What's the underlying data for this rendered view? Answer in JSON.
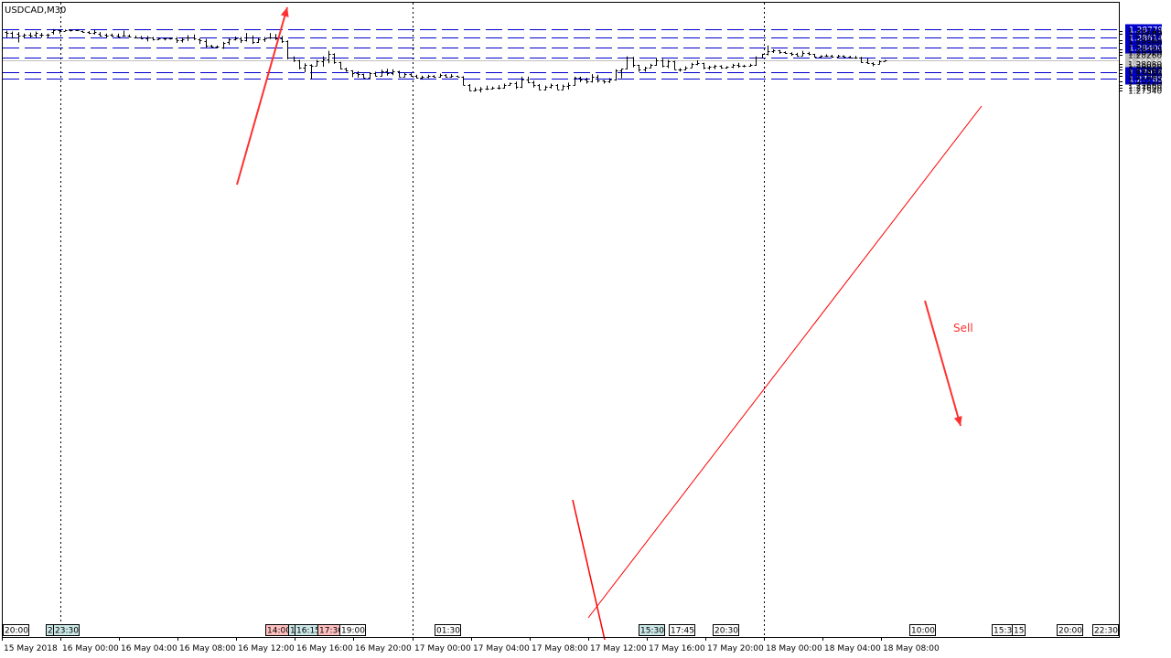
{
  "symbol_label": "USDCAD,M30",
  "chart_data": {
    "type": "ohlc",
    "symbol": "USDCAD",
    "timeframe": "M30",
    "y_range": [
      1.275,
      1.288
    ],
    "y_ticks": [
      "1.28740",
      "1.28680",
      "1.28560",
      "1.28500",
      "1.28380",
      "1.28320",
      "1.28260",
      "1.28080",
      "1.28020",
      "1.27960",
      "1.27900",
      "1.27840",
      "1.27720",
      "1.27660",
      "1.27600",
      "1.27540"
    ],
    "x_labels": [
      "15 May 2018",
      "16 May 00:00",
      "16 May 04:00",
      "16 May 08:00",
      "16 May 12:00",
      "16 May 16:00",
      "16 May 20:00",
      "17 May 00:00",
      "17 May 04:00",
      "17 May 08:00",
      "17 May 12:00",
      "17 May 16:00",
      "17 May 20:00",
      "18 May 00:00",
      "18 May 04:00",
      "18 May 08:00"
    ],
    "time_tags": [
      {
        "label": "20:00",
        "bg": "#ffffff"
      },
      {
        "label": "2",
        "bg": "#cce8e8"
      },
      {
        "label": "23:30",
        "bg": "#cce8e8"
      },
      {
        "label": "14:00",
        "bg": "#ffc0c0"
      },
      {
        "label": "1",
        "bg": "#cce8e8"
      },
      {
        "label": "16:15",
        "bg": "#cce8e8"
      },
      {
        "label": "17:30",
        "bg": "#ffc0c0"
      },
      {
        "label": "19:00",
        "bg": "#ffffff"
      },
      {
        "label": "01:30",
        "bg": "#ffffff"
      },
      {
        "label": "15:30",
        "bg": "#cce8e8"
      },
      {
        "label": "17:45",
        "bg": "#ffffff"
      },
      {
        "label": "20:30",
        "bg": "#ffffff"
      },
      {
        "label": "10:00",
        "bg": "#ffffff"
      },
      {
        "label": "15:30",
        "bg": "#ffffff"
      },
      {
        "label": "15",
        "bg": "#ffffff"
      },
      {
        "label": "20:00",
        "bg": "#ffffff"
      },
      {
        "label": "22:30",
        "bg": "#ffffff"
      }
    ],
    "horizontal_levels": [
      {
        "price": 1.28779,
        "label": "1.28779",
        "color": "#0000cc"
      },
      {
        "price": 1.28614,
        "label": "1.28614",
        "color": "#0000cc"
      },
      {
        "price": 1.284,
        "label": "1.28400",
        "color": "#0000cc"
      },
      {
        "price": 1.282,
        "label": "1.28200",
        "color": "#0000cc"
      },
      {
        "price": 1.27918,
        "label": "1.27918",
        "color": "#0000cc"
      },
      {
        "price": 1.27785,
        "label": "1.27785",
        "color": "#0000cc"
      }
    ],
    "bid_ask": [
      {
        "price": 1.28156,
        "label": "1.28156",
        "color": "#c0c0c0"
      },
      {
        "price": 1.28146,
        "label": "1.28146",
        "color": "#c0c0c0"
      }
    ],
    "annotation_text": "Sell",
    "annotation_color": "#ff3030",
    "trendline_color": "#ff0000",
    "bars": [
      [
        1.2872,
        1.2875,
        1.2861,
        1.287
      ],
      [
        1.287,
        1.2873,
        1.2859,
        1.2862
      ],
      [
        1.2869,
        1.2872,
        1.2851,
        1.2864
      ],
      [
        1.2865,
        1.2869,
        1.2859,
        1.2867
      ],
      [
        1.2867,
        1.2871,
        1.2861,
        1.2865
      ],
      [
        1.2866,
        1.2873,
        1.286,
        1.287
      ],
      [
        1.2866,
        1.287,
        1.2861,
        1.2866
      ],
      [
        1.2866,
        1.2869,
        1.2861,
        1.2867
      ],
      [
        1.2873,
        1.2878,
        1.2867,
        1.2875
      ],
      [
        1.2875,
        1.2876,
        1.2869,
        1.2874
      ],
      [
        1.2874,
        1.2877,
        1.2874,
        1.2876
      ],
      [
        1.2875,
        1.2877,
        1.2873,
        1.2876
      ],
      [
        1.2876,
        1.2877,
        1.2874,
        1.2875
      ],
      [
        1.2874,
        1.2875,
        1.2871,
        1.2873
      ],
      [
        1.2872,
        1.2874,
        1.2868,
        1.287
      ],
      [
        1.287,
        1.2876,
        1.2867,
        1.2872
      ],
      [
        1.2869,
        1.2872,
        1.2863,
        1.2865
      ],
      [
        1.2867,
        1.2869,
        1.2861,
        1.2865
      ],
      [
        1.2866,
        1.2869,
        1.2862,
        1.2865
      ],
      [
        1.2865,
        1.2869,
        1.2861,
        1.2863
      ],
      [
        1.2864,
        1.2875,
        1.2864,
        1.2864
      ],
      [
        1.2865,
        1.2867,
        1.2861,
        1.2863
      ],
      [
        1.2862,
        1.2865,
        1.286,
        1.2862
      ],
      [
        1.2862,
        1.2864,
        1.2858,
        1.286
      ],
      [
        1.286,
        1.2864,
        1.2853,
        1.2861
      ],
      [
        1.2861,
        1.2862,
        1.2855,
        1.2858
      ],
      [
        1.2858,
        1.2861,
        1.2856,
        1.2859
      ],
      [
        1.2859,
        1.2861,
        1.2855,
        1.286
      ],
      [
        1.286,
        1.2861,
        1.2857,
        1.2859
      ],
      [
        1.2859,
        1.2862,
        1.285,
        1.2856
      ],
      [
        1.2856,
        1.2861,
        1.2851,
        1.2858
      ],
      [
        1.2861,
        1.2866,
        1.2854,
        1.2862
      ],
      [
        1.2862,
        1.2867,
        1.2856,
        1.286
      ],
      [
        1.2858,
        1.286,
        1.2848,
        1.2856
      ],
      [
        1.2853,
        1.2858,
        1.2841,
        1.2845
      ],
      [
        1.2844,
        1.2846,
        1.284,
        1.2843
      ],
      [
        1.2843,
        1.2845,
        1.2839,
        1.2842
      ],
      [
        1.284,
        1.2852,
        1.2838,
        1.285
      ],
      [
        1.2852,
        1.286,
        1.2846,
        1.2857
      ],
      [
        1.2858,
        1.2863,
        1.2855,
        1.286
      ],
      [
        1.286,
        1.2862,
        1.285,
        1.2855
      ],
      [
        1.2856,
        1.287,
        1.2853,
        1.2862
      ],
      [
        1.2862,
        1.2865,
        1.2848,
        1.2851
      ],
      [
        1.2851,
        1.286,
        1.285,
        1.2858
      ],
      [
        1.2858,
        1.2862,
        1.2852,
        1.286
      ],
      [
        1.2861,
        1.287,
        1.2858,
        1.2862
      ],
      [
        1.2862,
        1.2868,
        1.2856,
        1.286
      ],
      [
        1.286,
        1.2864,
        1.285,
        1.2854
      ],
      [
        1.2854,
        1.2855,
        1.2817,
        1.2821
      ],
      [
        1.2821,
        1.2823,
        1.2812,
        1.2815
      ],
      [
        1.2815,
        1.2816,
        1.2797,
        1.28
      ],
      [
        1.28,
        1.2809,
        1.2791,
        1.2806
      ],
      [
        1.2806,
        1.2807,
        1.2777,
        1.2804
      ],
      [
        1.2804,
        1.2816,
        1.2804,
        1.2814
      ],
      [
        1.2814,
        1.2823,
        1.2802,
        1.2817
      ],
      [
        1.2817,
        1.2834,
        1.2809,
        1.2828
      ],
      [
        1.2828,
        1.2829,
        1.2808,
        1.2811
      ],
      [
        1.2811,
        1.2812,
        1.2797,
        1.2799
      ],
      [
        1.2799,
        1.28,
        1.2792,
        1.2794
      ],
      [
        1.2794,
        1.2795,
        1.2781,
        1.2789
      ],
      [
        1.2789,
        1.2793,
        1.278,
        1.2787
      ],
      [
        1.2787,
        1.2788,
        1.2779,
        1.278
      ],
      [
        1.278,
        1.2791,
        1.2779,
        1.279
      ],
      [
        1.279,
        1.2792,
        1.2783,
        1.2784
      ],
      [
        1.2784,
        1.2796,
        1.2783,
        1.2793
      ],
      [
        1.2793,
        1.2798,
        1.2784,
        1.2789
      ],
      [
        1.2789,
        1.2797,
        1.2785,
        1.2793
      ],
      [
        1.2793,
        1.2794,
        1.2781,
        1.2782
      ],
      [
        1.2782,
        1.279,
        1.2781,
        1.2787
      ],
      [
        1.2787,
        1.2789,
        1.2782,
        1.2783
      ],
      [
        1.2783,
        1.2786,
        1.2778,
        1.278
      ],
      [
        1.278,
        1.2784,
        1.2776,
        1.2782
      ],
      [
        1.2782,
        1.2786,
        1.2779,
        1.2783
      ],
      [
        1.2783,
        1.2785,
        1.278,
        1.2782
      ],
      [
        1.2782,
        1.2788,
        1.278,
        1.2785
      ],
      [
        1.2785,
        1.2787,
        1.278,
        1.2782
      ],
      [
        1.2782,
        1.2787,
        1.278,
        1.2783
      ],
      [
        1.2783,
        1.2784,
        1.2781,
        1.2782
      ],
      [
        1.2782,
        1.2783,
        1.2765,
        1.2766
      ],
      [
        1.2766,
        1.2767,
        1.2753,
        1.2754
      ],
      [
        1.2754,
        1.276,
        1.2752,
        1.2756
      ],
      [
        1.2756,
        1.2761,
        1.275,
        1.2757
      ],
      [
        1.2757,
        1.2764,
        1.2755,
        1.2758
      ],
      [
        1.2758,
        1.2762,
        1.2756,
        1.276
      ],
      [
        1.276,
        1.2765,
        1.2756,
        1.276
      ],
      [
        1.276,
        1.2768,
        1.2758,
        1.2766
      ],
      [
        1.2766,
        1.277,
        1.2764,
        1.2768
      ],
      [
        1.2768,
        1.2772,
        1.2757,
        1.2762
      ],
      [
        1.2762,
        1.2782,
        1.2759,
        1.2776
      ],
      [
        1.2776,
        1.2782,
        1.2769,
        1.277
      ],
      [
        1.277,
        1.2774,
        1.276,
        1.2765
      ],
      [
        1.2765,
        1.2767,
        1.2755,
        1.2756
      ],
      [
        1.2756,
        1.2764,
        1.2754,
        1.2762
      ],
      [
        1.2762,
        1.2768,
        1.2758,
        1.2765
      ],
      [
        1.2765,
        1.2767,
        1.2756,
        1.2756
      ],
      [
        1.2756,
        1.2766,
        1.2755,
        1.2764
      ],
      [
        1.2764,
        1.277,
        1.2756,
        1.2766
      ],
      [
        1.2766,
        1.2782,
        1.2764,
        1.278
      ],
      [
        1.278,
        1.2782,
        1.2771,
        1.2776
      ],
      [
        1.2776,
        1.278,
        1.2768,
        1.2773
      ],
      [
        1.2773,
        1.2787,
        1.277,
        1.2782
      ],
      [
        1.2782,
        1.2786,
        1.277,
        1.2774
      ],
      [
        1.2774,
        1.2775,
        1.2768,
        1.2772
      ],
      [
        1.2772,
        1.2779,
        1.2769,
        1.2776
      ],
      [
        1.2776,
        1.2797,
        1.2774,
        1.2795
      ],
      [
        1.2795,
        1.2798,
        1.2779,
        1.2798
      ],
      [
        1.2798,
        1.2823,
        1.2797,
        1.282
      ],
      [
        1.282,
        1.2822,
        1.2801,
        1.2805
      ],
      [
        1.2805,
        1.2806,
        1.2792,
        1.2796
      ],
      [
        1.2796,
        1.2802,
        1.2792,
        1.28
      ],
      [
        1.28,
        1.2808,
        1.2799,
        1.2806
      ],
      [
        1.2806,
        1.282,
        1.2804,
        1.2815
      ],
      [
        1.2815,
        1.2818,
        1.2801,
        1.2803
      ],
      [
        1.2803,
        1.2816,
        1.2799,
        1.2813
      ],
      [
        1.2813,
        1.2814,
        1.2796,
        1.2797
      ],
      [
        1.2797,
        1.2799,
        1.2792,
        1.2796
      ],
      [
        1.2796,
        1.2803,
        1.2795,
        1.2801
      ],
      [
        1.2801,
        1.281,
        1.28,
        1.2808
      ],
      [
        1.2808,
        1.2815,
        1.2805,
        1.2809
      ],
      [
        1.2809,
        1.281,
        1.2797,
        1.28
      ],
      [
        1.28,
        1.2804,
        1.2796,
        1.2802
      ],
      [
        1.2802,
        1.2806,
        1.2797,
        1.2804
      ],
      [
        1.2804,
        1.2805,
        1.2798,
        1.28
      ],
      [
        1.28,
        1.2803,
        1.2798,
        1.2802
      ],
      [
        1.2802,
        1.2808,
        1.2799,
        1.2806
      ],
      [
        1.2806,
        1.281,
        1.28,
        1.2804
      ],
      [
        1.2804,
        1.2806,
        1.2801,
        1.2803
      ],
      [
        1.2803,
        1.2808,
        1.2802,
        1.2805
      ],
      [
        1.2805,
        1.2823,
        1.2804,
        1.2821
      ],
      [
        1.2821,
        1.2828,
        1.2819,
        1.2827
      ],
      [
        1.2827,
        1.2845,
        1.2825,
        1.2833
      ],
      [
        1.2833,
        1.2837,
        1.283,
        1.2835
      ],
      [
        1.2835,
        1.2836,
        1.2828,
        1.2832
      ],
      [
        1.2832,
        1.2833,
        1.2828,
        1.283
      ],
      [
        1.283,
        1.2831,
        1.2824,
        1.2828
      ],
      [
        1.2828,
        1.283,
        1.2823,
        1.2825
      ],
      [
        1.2825,
        1.2834,
        1.2824,
        1.283
      ],
      [
        1.283,
        1.2832,
        1.2825,
        1.2827
      ],
      [
        1.2827,
        1.2828,
        1.2821,
        1.2823
      ],
      [
        1.2823,
        1.2825,
        1.282,
        1.2824
      ],
      [
        1.2824,
        1.2827,
        1.2822,
        1.2825
      ],
      [
        1.2825,
        1.2826,
        1.282,
        1.2822
      ],
      [
        1.2822,
        1.2826,
        1.2821,
        1.2824
      ],
      [
        1.2824,
        1.2825,
        1.2819,
        1.2823
      ],
      [
        1.2823,
        1.2824,
        1.282,
        1.2821
      ],
      [
        1.2821,
        1.2824,
        1.2818,
        1.282
      ],
      [
        1.282,
        1.2822,
        1.281,
        1.2812
      ],
      [
        1.2812,
        1.2819,
        1.2808,
        1.2809
      ],
      [
        1.2809,
        1.2811,
        1.2803,
        1.2808
      ],
      [
        1.2808,
        1.2815,
        1.2807,
        1.2813
      ],
      [
        1.2813,
        1.2816,
        1.2813,
        1.28146
      ]
    ]
  }
}
